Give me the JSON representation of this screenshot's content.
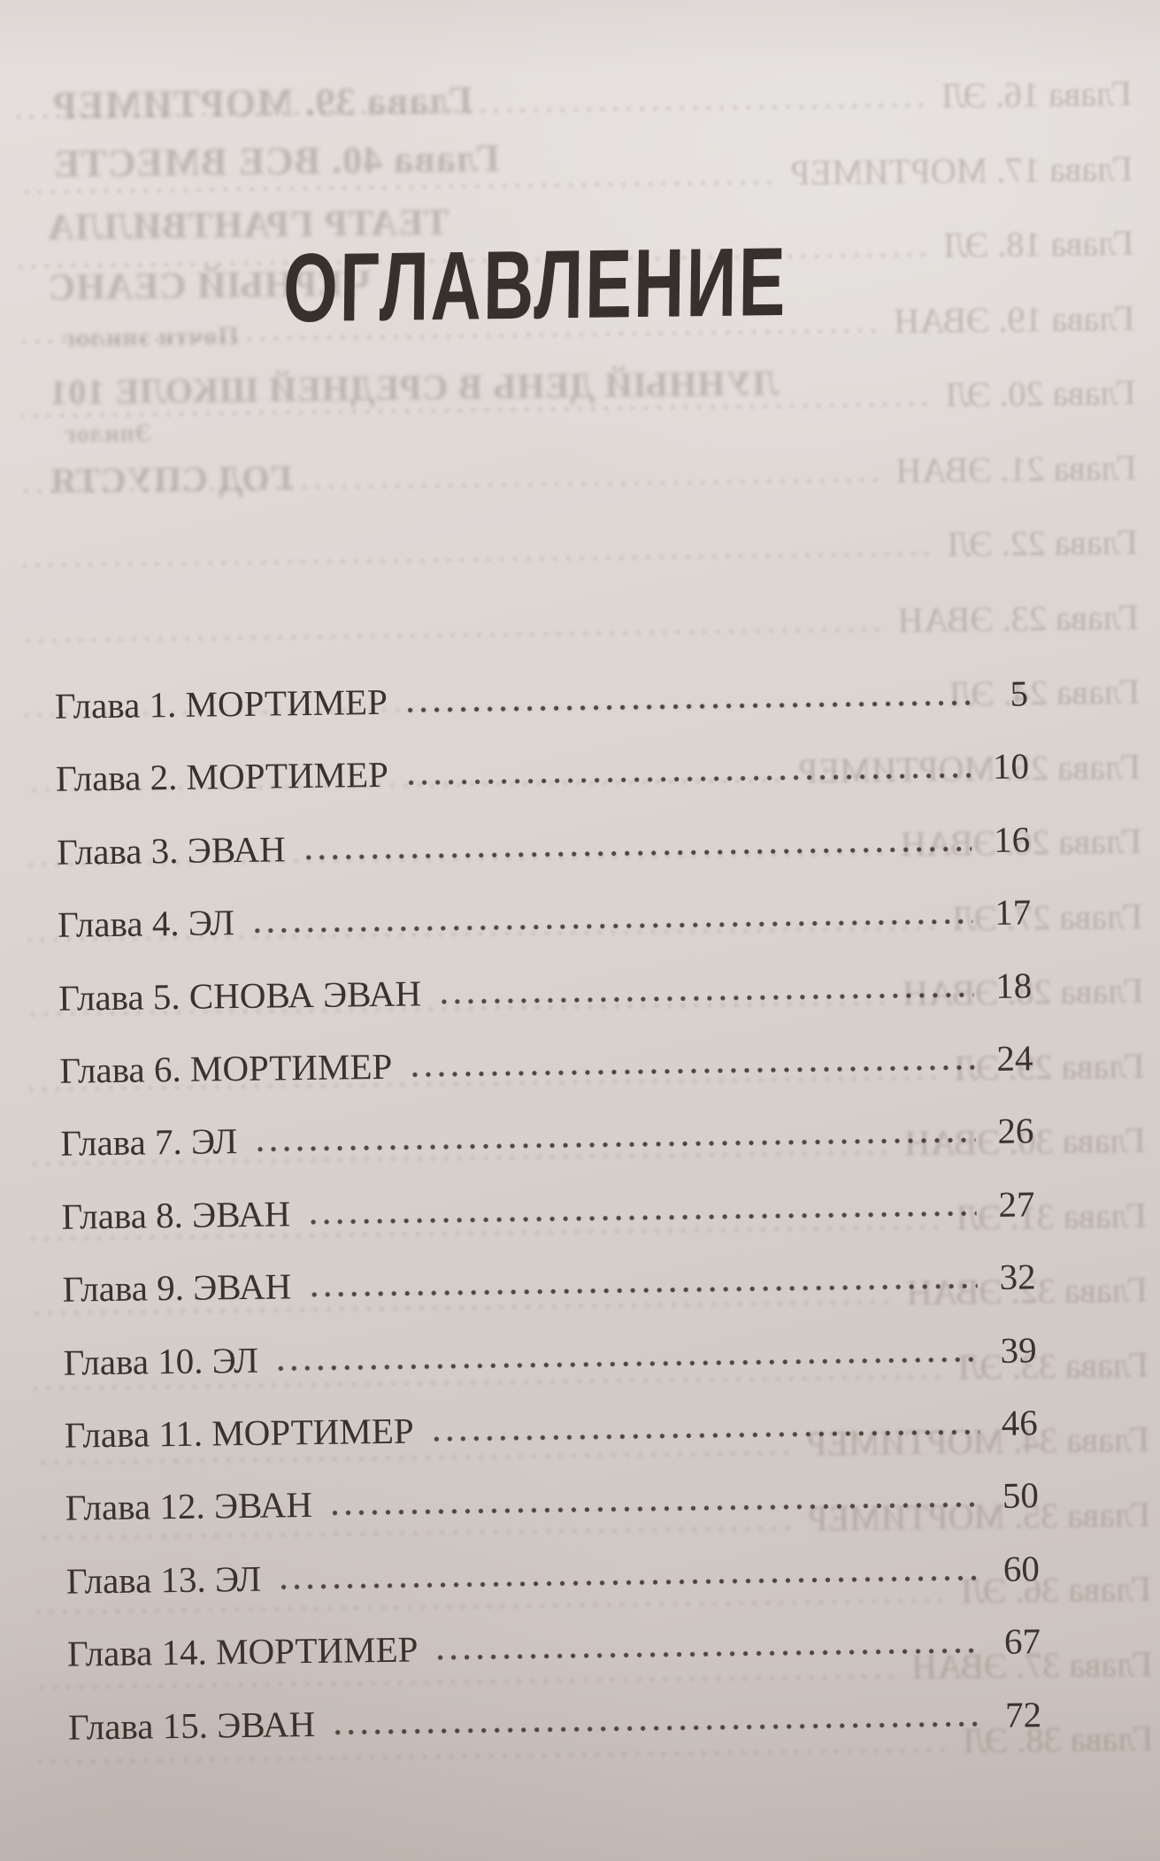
{
  "title": "ОГЛАВЛЕНИЕ",
  "toc": {
    "entries": [
      {
        "label": "Глава 1. МОРТИМЕР",
        "page": "5"
      },
      {
        "label": "Глава 2. МОРТИМЕР",
        "page": "10"
      },
      {
        "label": "Глава 3. ЭВАН",
        "page": "16"
      },
      {
        "label": "Глава 4. ЭЛ",
        "page": "17"
      },
      {
        "label": "Глава 5. СНОВА ЭВАН",
        "page": "18"
      },
      {
        "label": "Глава 6. МОРТИМЕР",
        "page": "24"
      },
      {
        "label": "Глава 7. ЭЛ",
        "page": "26"
      },
      {
        "label": "Глава 8. ЭВАН",
        "page": "27"
      },
      {
        "label": "Глава 9. ЭВАН",
        "page": "32"
      },
      {
        "label": "Глава 10. ЭЛ",
        "page": "39"
      },
      {
        "label": "Глава 11. МОРТИМЕР",
        "page": "46"
      },
      {
        "label": "Глава 12. ЭВАН",
        "page": "50"
      },
      {
        "label": "Глава 13. ЭЛ",
        "page": "60"
      },
      {
        "label": "Глава 14. МОРТИМЕР",
        "page": "67"
      },
      {
        "label": "Глава 15. ЭВАН",
        "page": "72"
      }
    ]
  },
  "showthrough": {
    "top_lines": [
      "Глава 39. МОРТИМЕР",
      "Глава 40. ВСЕ ВМЕСТЕ",
      "ТЕАТР ГРАНТВИЛЛА",
      "ЧЕРНЫЙ СЕАНС",
      "Почти эпилог",
      "ЛУННЫЙ ДЕНЬ В СРЕДНЕЙ ШКОЛЕ 101",
      "Эпилог",
      "ГОД СПУСТЯ"
    ],
    "entries": [
      "Глава 16. ЭЛ",
      "Глава 17. МОРТИМЕР",
      "Глава 18. ЭЛ",
      "Глава 19. ЭВАН",
      "Глава 20. ЭЛ",
      "Глава 21. ЭВАН",
      "Глава 22. ЭЛ",
      "Глава 23. ЭВАН",
      "Глава 24. ЭЛ",
      "Глава 25. МОРТИМЕР",
      "Глава 26. ЭВАН",
      "Глава 27. ЭЛ",
      "Глава 28. ЭВАН",
      "Глава 29. ЭЛ",
      "Глава 30. ЭВАН",
      "Глава 31. ЭЛ",
      "Глава 32. ЭВАН",
      "Глава 33. ЭЛ",
      "Глава 34. МОРТИМЕР",
      "Глава 35. МОРТИМЕР",
      "Глава 36. ЭЛ",
      "Глава 37. ЭВАН",
      "Глава 38. ЭЛ"
    ]
  },
  "colors": {
    "paper_light": "#e5e0dd",
    "paper_dark": "#c9c0bb",
    "ink": "#3a322b",
    "ghost_ink": "#8d7f75"
  }
}
